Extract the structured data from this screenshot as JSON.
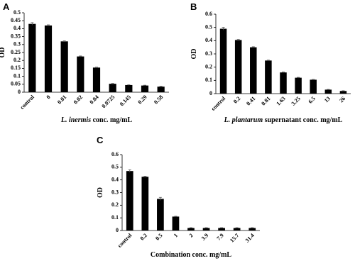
{
  "chart_data": [
    {
      "type": "bar",
      "panel": "A",
      "ylabel": "OD",
      "xlabel_italic": "L. inermis",
      "xlabel": "conc. mg/mL",
      "categories": [
        "control",
        "0",
        "0.01",
        "0.02",
        "0.04",
        "0.0725",
        "0.145",
        "0.29",
        "0.58"
      ],
      "values": [
        0.43,
        0.42,
        0.32,
        0.225,
        0.155,
        0.053,
        0.045,
        0.042,
        0.035
      ],
      "errors": [
        0.008,
        0.004,
        0.003,
        0.003,
        0.003,
        0.002,
        0.002,
        0.002,
        0.002
      ],
      "color": "#000000",
      "ylim": [
        0,
        0.5
      ],
      "yticks": [
        0,
        0.05,
        0.1,
        0.15,
        0.2,
        0.25,
        0.3,
        0.35,
        0.4,
        0.45,
        0.5
      ]
    },
    {
      "type": "bar",
      "panel": "B",
      "ylabel": "OD",
      "xlabel_italic": "L. plantarum",
      "xlabel": "supernatant conc. mg/mL",
      "categories": [
        "control",
        "0.2",
        "0.41",
        "0.81",
        "1.63",
        "3.25",
        "6.5",
        "13",
        "26"
      ],
      "values": [
        0.49,
        0.405,
        0.35,
        0.25,
        0.16,
        0.12,
        0.105,
        0.03,
        0.02
      ],
      "errors": [
        0.01,
        0.004,
        0.004,
        0.003,
        0.003,
        0.003,
        0.003,
        0.002,
        0.002
      ],
      "color": "#000000",
      "ylim": [
        0,
        0.6
      ],
      "yticks": [
        0,
        0.1,
        0.2,
        0.3,
        0.4,
        0.5,
        0.6
      ]
    },
    {
      "type": "bar",
      "panel": "C",
      "ylabel": "OD",
      "xlabel": "Combination conc. mg/mL",
      "categories": [
        "control",
        "0.2",
        "0.5",
        "1",
        "2",
        "3.9",
        "7.9",
        "15.7",
        "31.4"
      ],
      "values": [
        0.47,
        0.425,
        0.25,
        0.11,
        0.02,
        0.02,
        0.02,
        0.02,
        0.02
      ],
      "errors": [
        0.01,
        0.004,
        0.012,
        0.003,
        0.002,
        0.002,
        0.002,
        0.002,
        0.002
      ],
      "color": "#000000",
      "ylim": [
        0,
        0.6
      ],
      "yticks": [
        0,
        0.1,
        0.2,
        0.3,
        0.4,
        0.5,
        0.6
      ]
    }
  ]
}
